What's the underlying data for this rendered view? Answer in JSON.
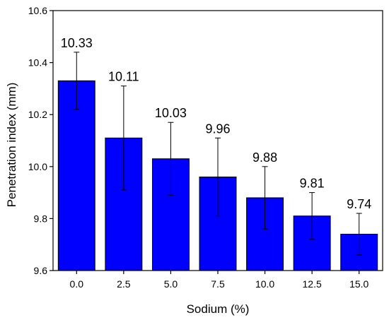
{
  "chart_data": {
    "type": "bar",
    "title": "",
    "xlabel": "Sodium (%)",
    "ylabel": "Penetration index (mm)",
    "categories": [
      "0.0",
      "2.5",
      "5.0",
      "7.5",
      "10.0",
      "12.5",
      "15.0"
    ],
    "values": [
      10.33,
      10.11,
      10.03,
      9.96,
      9.88,
      9.81,
      9.74
    ],
    "error_upper": [
      10.44,
      10.31,
      10.17,
      10.11,
      10.0,
      9.9,
      9.82
    ],
    "error_lower": [
      10.22,
      9.91,
      9.89,
      9.81,
      9.76,
      9.72,
      9.66
    ],
    "data_labels": [
      "10.33",
      "10.11",
      "10.03",
      "9.96",
      "9.88",
      "9.81",
      "9.74"
    ],
    "ylim": [
      9.6,
      10.6
    ],
    "yticks": [
      9.6,
      9.8,
      10.0,
      10.2,
      10.4,
      10.6
    ],
    "ytick_labels": [
      "9.6",
      "9.8",
      "10.0",
      "10.2",
      "10.4",
      "10.6"
    ],
    "grid": false,
    "legend": "none",
    "bar_color": "#0000FF",
    "bar_edge_color": "#000000"
  }
}
